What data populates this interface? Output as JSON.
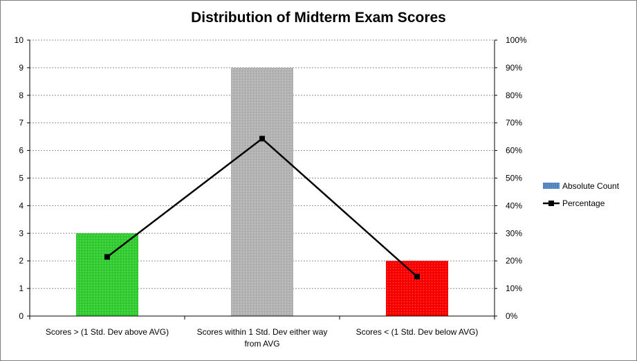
{
  "chart_data": {
    "type": "bar+line",
    "title": "Distribution of Midterm Exam Scores",
    "categories": [
      [
        "Scores > (1 Std. Dev above AVG)"
      ],
      [
        "Scores within 1 Std. Dev either way",
        "from AVG"
      ],
      [
        "Scores < (1 Std. Dev below AVG)"
      ]
    ],
    "series": [
      {
        "name": "Absolute Count",
        "type": "bar",
        "axis": "left",
        "values": [
          3,
          9,
          2
        ],
        "bar_colors": [
          "#33cc33",
          "#b3b3b3",
          "#ff0000"
        ],
        "legend_color": "#4f81bd"
      },
      {
        "name": "Percentage",
        "type": "line",
        "axis": "right",
        "values": [
          0.2143,
          0.6429,
          0.1429
        ],
        "color": "#000000"
      }
    ],
    "y_left": {
      "min": 0,
      "max": 10,
      "ticks": [
        "0",
        "1",
        "2",
        "3",
        "4",
        "5",
        "6",
        "7",
        "8",
        "9",
        "10"
      ]
    },
    "y_right": {
      "min": 0,
      "max": 1,
      "ticks": [
        "0%",
        "10%",
        "20%",
        "30%",
        "40%",
        "50%",
        "60%",
        "70%",
        "80%",
        "90%",
        "100%"
      ]
    },
    "grid": true,
    "legend_position": "right"
  }
}
